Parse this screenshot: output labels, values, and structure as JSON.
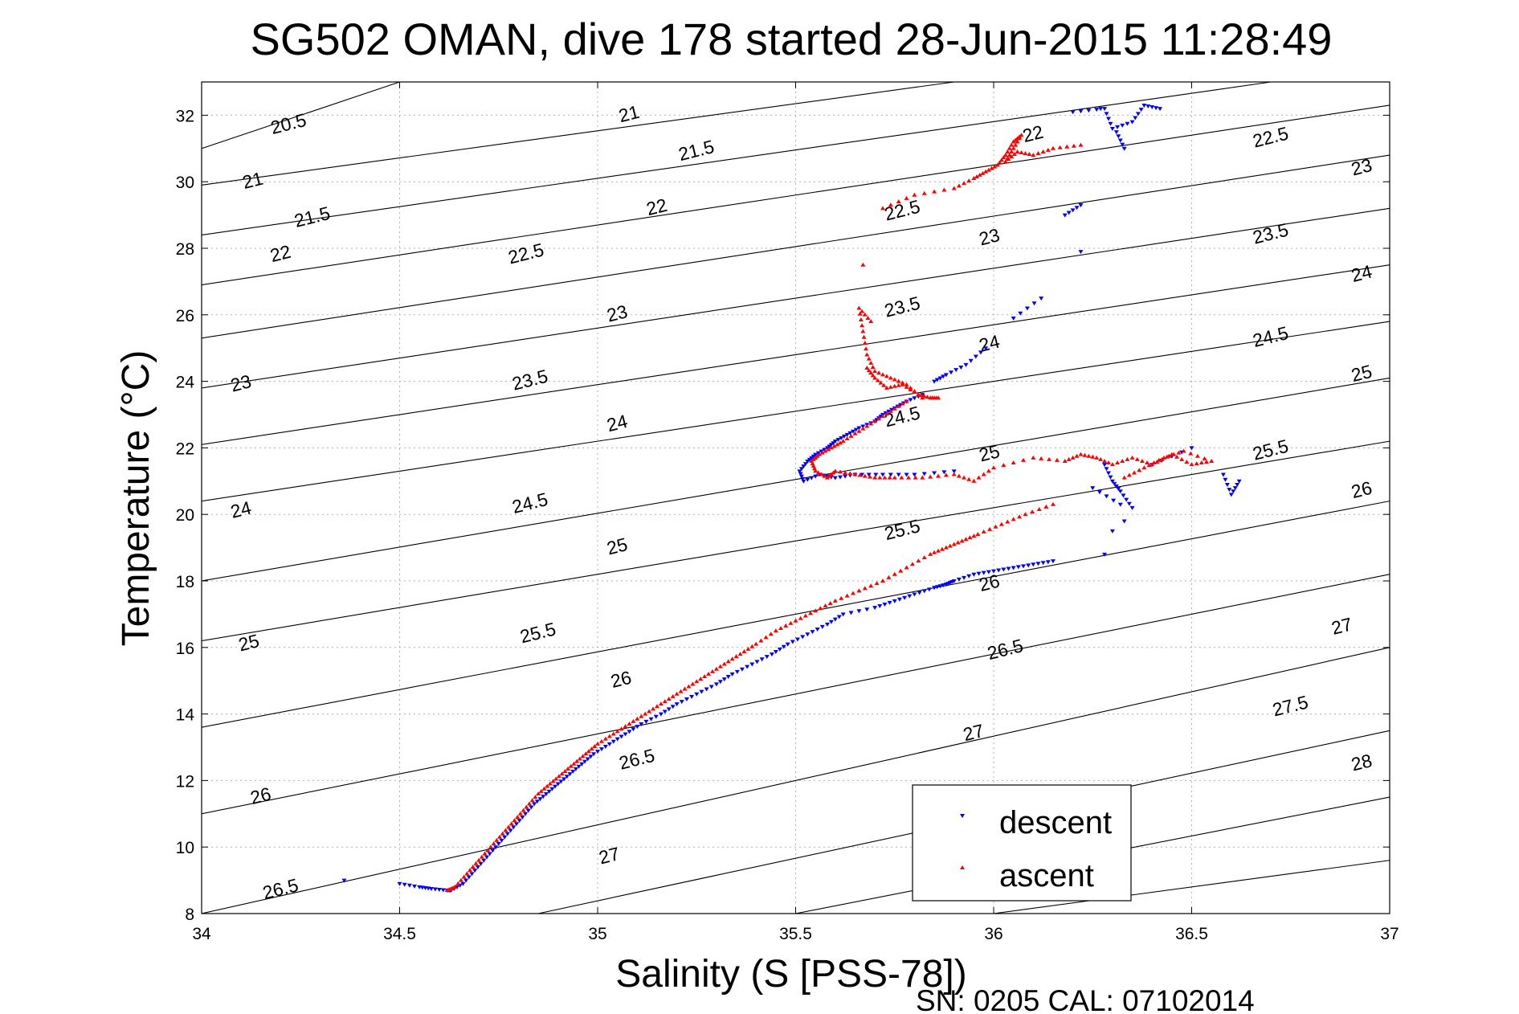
{
  "chart_data": {
    "type": "scatter",
    "title": "SG502 OMAN, dive 178 started 28-Jun-2015 11:28:49",
    "xlabel": "Salinity (S [PSS-78])",
    "ylabel": "Temperature (°C)",
    "xlim": [
      34,
      37
    ],
    "ylim": [
      8,
      33
    ],
    "xticks": [
      34,
      34.5,
      35,
      35.5,
      36,
      36.5,
      37
    ],
    "xtick_labels": [
      "34",
      "34.5",
      "35",
      "35.5",
      "36",
      "36.5",
      "37"
    ],
    "yticks": [
      8,
      10,
      12,
      14,
      16,
      18,
      20,
      22,
      24,
      26,
      28,
      30,
      32
    ],
    "ytick_labels": [
      "8",
      "10",
      "12",
      "14",
      "16",
      "18",
      "20",
      "22",
      "24",
      "26",
      "28",
      "30",
      "32"
    ],
    "grid": true,
    "legend_position": "bottom-right",
    "footer": "SN: 0205  CAL: 07102014",
    "contours": [
      {
        "label": "20.5",
        "s1": 34,
        "t1": 31.0,
        "s2": 34.5,
        "t2": 33.0
      },
      {
        "label": "21",
        "s1": 34,
        "t1": 29.9,
        "s2": 35.9,
        "t2": 33.0
      },
      {
        "label": "21.5",
        "s1": 34,
        "t1": 28.4,
        "s2": 36.7,
        "t2": 33.0
      },
      {
        "label": "22",
        "s1": 34,
        "t1": 26.9,
        "s2": 37,
        "t2": 32.3
      },
      {
        "label": "22.5",
        "s1": 34,
        "t1": 25.3,
        "s2": 37,
        "t2": 30.8
      },
      {
        "label": "23",
        "s1": 34,
        "t1": 23.8,
        "s2": 37,
        "t2": 29.2
      },
      {
        "label": "23.5",
        "s1": 34,
        "t1": 22.1,
        "s2": 37,
        "t2": 27.5
      },
      {
        "label": "24",
        "s1": 34,
        "t1": 20.4,
        "s2": 37,
        "t2": 25.8
      },
      {
        "label": "24.5",
        "s1": 34,
        "t1": 18.0,
        "s2": 37,
        "t2": 24.1
      },
      {
        "label": "25",
        "s1": 34,
        "t1": 16.2,
        "s2": 37,
        "t2": 22.2
      },
      {
        "label": "25.5",
        "s1": 34,
        "t1": 13.6,
        "s2": 37,
        "t2": 20.4
      },
      {
        "label": "26",
        "s1": 34,
        "t1": 11.0,
        "s2": 37,
        "t2": 18.2
      },
      {
        "label": "26.5",
        "s1": 34,
        "t1": 8.0,
        "s2": 37,
        "t2": 16.0
      },
      {
        "label": "27",
        "s1": 34.85,
        "t1": 8.0,
        "s2": 37,
        "t2": 13.5
      },
      {
        "label": "27.5",
        "s1": 35.5,
        "t1": 8.0,
        "s2": 37,
        "t2": 11.5
      },
      {
        "label": "28",
        "s1": 36.0,
        "t1": 8.0,
        "s2": 37,
        "t2": 9.6
      }
    ],
    "contour_labels": [
      {
        "text": "20.5",
        "s": 34.22,
        "t": 31.7,
        "rot": -14
      },
      {
        "text": "21",
        "s": 35.08,
        "t": 32.0,
        "rot": -14
      },
      {
        "text": "21",
        "s": 34.13,
        "t": 30.0,
        "rot": -14
      },
      {
        "text": "21.5",
        "s": 35.25,
        "t": 30.9,
        "rot": -14
      },
      {
        "text": "21.5",
        "s": 34.28,
        "t": 28.9,
        "rot": -14
      },
      {
        "text": "22",
        "s": 35.15,
        "t": 29.2,
        "rot": -14
      },
      {
        "text": "22",
        "s": 36.1,
        "t": 31.4,
        "rot": -14
      },
      {
        "text": "22",
        "s": 34.2,
        "t": 27.8,
        "rot": -14
      },
      {
        "text": "22.5",
        "s": 34.82,
        "t": 27.8,
        "rot": -14
      },
      {
        "text": "22.5",
        "s": 35.77,
        "t": 29.1,
        "rot": -14
      },
      {
        "text": "22.5",
        "s": 36.7,
        "t": 31.3,
        "rot": -14
      },
      {
        "text": "23",
        "s": 35.05,
        "t": 26.0,
        "rot": -14
      },
      {
        "text": "23",
        "s": 35.99,
        "t": 28.3,
        "rot": -14
      },
      {
        "text": "23",
        "s": 36.93,
        "t": 30.4,
        "rot": -14
      },
      {
        "text": "23",
        "s": 34.1,
        "t": 23.9,
        "rot": -14
      },
      {
        "text": "23.5",
        "s": 34.83,
        "t": 24.0,
        "rot": -14
      },
      {
        "text": "23.5",
        "s": 35.77,
        "t": 26.2,
        "rot": -14
      },
      {
        "text": "23.5",
        "s": 36.7,
        "t": 28.4,
        "rot": -14
      },
      {
        "text": "24",
        "s": 35.05,
        "t": 22.7,
        "rot": -14
      },
      {
        "text": "24",
        "s": 35.99,
        "t": 25.1,
        "rot": -14
      },
      {
        "text": "24",
        "s": 36.93,
        "t": 27.2,
        "rot": -14
      },
      {
        "text": "24",
        "s": 34.1,
        "t": 20.1,
        "rot": -14
      },
      {
        "text": "24.5",
        "s": 34.83,
        "t": 20.3,
        "rot": -14
      },
      {
        "text": "24.5",
        "s": 35.77,
        "t": 22.9,
        "rot": -14
      },
      {
        "text": "24.5",
        "s": 36.7,
        "t": 25.3,
        "rot": -14
      },
      {
        "text": "25",
        "s": 35.05,
        "t": 19.0,
        "rot": -14
      },
      {
        "text": "25",
        "s": 35.99,
        "t": 21.8,
        "rot": -14
      },
      {
        "text": "25",
        "s": 36.93,
        "t": 24.2,
        "rot": -14
      },
      {
        "text": "25",
        "s": 34.12,
        "t": 16.1,
        "rot": -14
      },
      {
        "text": "25.5",
        "s": 34.85,
        "t": 16.4,
        "rot": -14
      },
      {
        "text": "25.5",
        "s": 35.77,
        "t": 19.5,
        "rot": -14
      },
      {
        "text": "25.5",
        "s": 36.7,
        "t": 21.9,
        "rot": -14
      },
      {
        "text": "26",
        "s": 35.06,
        "t": 15.0,
        "rot": -14
      },
      {
        "text": "26",
        "s": 35.99,
        "t": 17.9,
        "rot": -14
      },
      {
        "text": "26",
        "s": 36.93,
        "t": 20.7,
        "rot": -14
      },
      {
        "text": "26",
        "s": 34.15,
        "t": 11.5,
        "rot": -14
      },
      {
        "text": "26.5",
        "s": 35.1,
        "t": 12.6,
        "rot": -14
      },
      {
        "text": "26.5",
        "s": 36.03,
        "t": 15.9,
        "rot": -14
      },
      {
        "text": "26.5",
        "s": 34.2,
        "t": 8.7,
        "rot": -14
      },
      {
        "text": "27",
        "s": 35.03,
        "t": 9.7,
        "rot": -14
      },
      {
        "text": "27",
        "s": 35.95,
        "t": 13.4,
        "rot": -14
      },
      {
        "text": "27",
        "s": 36.88,
        "t": 16.6,
        "rot": -14
      },
      {
        "text": "27.5",
        "s": 36.75,
        "t": 14.2,
        "rot": -14
      },
      {
        "text": "28",
        "s": 36.93,
        "t": 12.5,
        "rot": -14
      }
    ],
    "series": [
      {
        "name": "descent",
        "color": "#0000ff",
        "marker": "triangle-down",
        "x": [
          34.36,
          34.5,
          34.55,
          34.58,
          34.62,
          34.63,
          34.66,
          34.69,
          34.72,
          34.75,
          34.78,
          34.81,
          34.84,
          34.87,
          34.9,
          34.93,
          34.96,
          34.99,
          35.03,
          35.07,
          35.11,
          35.16,
          35.2,
          35.25,
          35.3,
          35.34,
          35.39,
          35.44,
          35.48,
          35.53,
          35.58,
          35.62,
          35.7,
          35.75,
          35.8,
          35.85,
          35.88,
          35.9,
          35.95,
          36.0,
          36.05,
          36.1,
          36.15,
          35.82,
          35.78,
          35.75,
          35.72,
          35.7,
          35.66,
          35.63,
          35.6,
          35.58,
          35.55,
          35.53,
          35.51,
          35.52,
          35.56,
          35.6,
          35.65,
          35.72,
          35.8,
          35.9,
          35.85,
          35.88,
          35.93,
          35.98,
          36.05,
          36.12,
          36.22,
          36.28,
          36.3,
          36.32,
          36.35,
          36.4,
          36.5,
          36.58,
          36.6,
          36.62,
          36.3,
          36.32,
          36.25,
          36.28,
          36.33,
          36.22,
          36.18,
          36.2,
          36.28,
          36.3,
          36.35,
          36.38,
          36.42,
          36.31,
          36.33,
          36.27
        ],
        "y": [
          9.0,
          8.9,
          8.8,
          8.75,
          8.7,
          8.7,
          8.9,
          9.3,
          9.7,
          10.1,
          10.5,
          10.9,
          11.3,
          11.6,
          11.9,
          12.2,
          12.5,
          12.8,
          13.1,
          13.4,
          13.7,
          14.0,
          14.3,
          14.6,
          14.9,
          15.2,
          15.5,
          15.8,
          16.1,
          16.4,
          16.7,
          17.0,
          17.2,
          17.4,
          17.6,
          17.8,
          17.9,
          18.0,
          18.2,
          18.3,
          18.4,
          18.5,
          18.6,
          23.6,
          23.4,
          23.2,
          23.0,
          22.8,
          22.6,
          22.4,
          22.2,
          22.0,
          21.8,
          21.6,
          21.3,
          21.0,
          21.2,
          21.1,
          21.2,
          21.2,
          21.2,
          21.3,
          24.0,
          24.2,
          24.5,
          25.0,
          25.9,
          26.5,
          27.9,
          21.5,
          21.0,
          20.7,
          20.2,
          21.5,
          22.0,
          21.2,
          20.6,
          21.0,
          19.5,
          20.3,
          20.8,
          18.8,
          19.8,
          29.3,
          29.0,
          32.1,
          32.2,
          31.6,
          31.8,
          32.3,
          32.2,
          31.5,
          31.0,
          32.2
        ]
      },
      {
        "name": "ascent",
        "color": "#ff0000",
        "marker": "triangle-up",
        "x": [
          34.62,
          34.64,
          34.67,
          34.7,
          34.73,
          34.76,
          34.79,
          34.82,
          34.85,
          34.88,
          34.91,
          34.94,
          34.97,
          35.0,
          35.04,
          35.08,
          35.12,
          35.16,
          35.2,
          35.24,
          35.28,
          35.32,
          35.36,
          35.4,
          35.45,
          35.5,
          35.55,
          35.6,
          35.66,
          35.72,
          35.78,
          35.84,
          35.88,
          35.92,
          35.96,
          36.02,
          36.08,
          36.15,
          35.78,
          35.74,
          35.7,
          35.66,
          35.62,
          35.59,
          35.56,
          35.54,
          35.55,
          35.58,
          35.6,
          35.65,
          35.7,
          35.75,
          35.82,
          35.9,
          35.95,
          36.0,
          36.1,
          36.18,
          36.22,
          36.26,
          36.3,
          36.35,
          36.4,
          36.45,
          36.5,
          36.55,
          36.48,
          36.43,
          36.38,
          36.33,
          35.82,
          35.78,
          35.74,
          35.7,
          35.68,
          35.67,
          35.66,
          35.69,
          35.67,
          35.68,
          35.7,
          35.73,
          35.77,
          35.81,
          35.84,
          35.86,
          35.72,
          35.8,
          35.9,
          35.95,
          35.98,
          36.01,
          36.03,
          36.05,
          36.07,
          36.05,
          36.03,
          36.06,
          36.1,
          36.15,
          36.22
        ],
        "y": [
          8.7,
          8.8,
          9.2,
          9.6,
          10.0,
          10.4,
          10.8,
          11.2,
          11.6,
          11.9,
          12.2,
          12.5,
          12.8,
          13.1,
          13.4,
          13.7,
          14.0,
          14.3,
          14.6,
          14.9,
          15.2,
          15.5,
          15.8,
          16.1,
          16.5,
          16.8,
          17.1,
          17.4,
          17.7,
          18.0,
          18.4,
          18.8,
          19.0,
          19.2,
          19.4,
          19.7,
          20.0,
          20.3,
          23.4,
          23.1,
          22.8,
          22.5,
          22.2,
          22.0,
          21.8,
          21.6,
          21.3,
          21.1,
          21.3,
          21.2,
          21.1,
          21.1,
          21.1,
          21.2,
          21.0,
          21.4,
          21.7,
          21.6,
          21.8,
          21.7,
          21.5,
          21.7,
          21.5,
          21.8,
          21.5,
          21.6,
          21.9,
          21.7,
          21.4,
          21.1,
          23.5,
          23.9,
          24.1,
          24.3,
          24.8,
          25.5,
          26.2,
          25.8,
          27.5,
          24.4,
          24.1,
          23.8,
          23.9,
          23.6,
          23.5,
          23.5,
          29.2,
          29.6,
          29.8,
          30.1,
          30.3,
          30.5,
          30.8,
          31.2,
          31.4,
          31.0,
          30.6,
          30.9,
          30.8,
          31.0,
          31.1
        ]
      }
    ]
  }
}
